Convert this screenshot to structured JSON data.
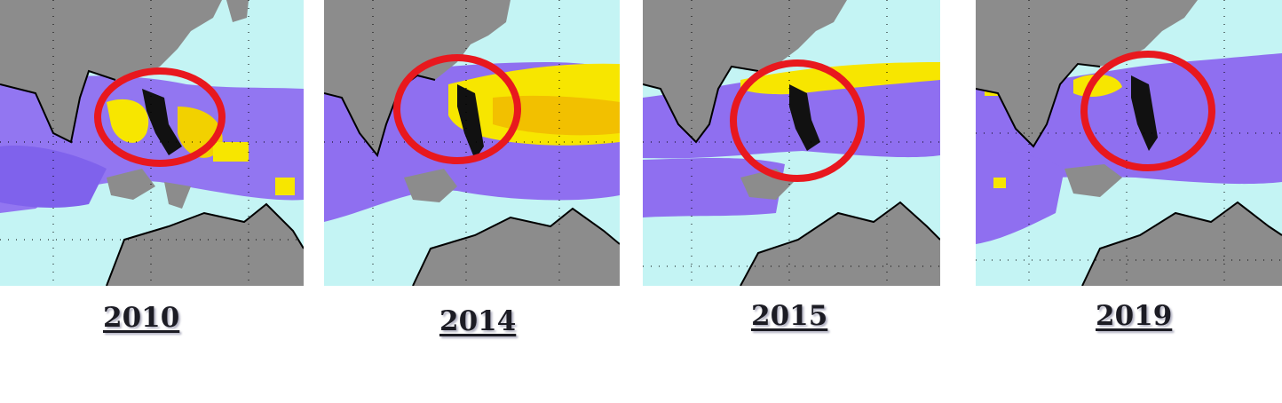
{
  "colors": {
    "ocean": "#c4f4f4",
    "land": "#8c8c8c",
    "coast": "#000000",
    "low_band": "#8f6ff0",
    "high_band": "#f7e600",
    "highlight_ring": "#e8181e",
    "label_text": "#1c1c24"
  },
  "panels": [
    {
      "year": "2010",
      "highlight_icon": "red-circle-highlight"
    },
    {
      "year": "2014",
      "highlight_icon": "red-circle-highlight"
    },
    {
      "year": "2015",
      "highlight_icon": "red-circle-highlight"
    },
    {
      "year": "2019",
      "highlight_icon": "red-circle-highlight"
    }
  ]
}
